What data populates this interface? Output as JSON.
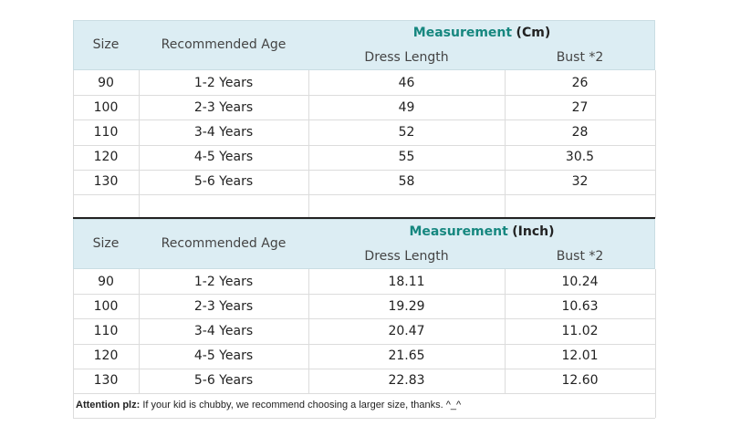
{
  "tables": [
    {
      "headers": {
        "size": "Size",
        "age": "Recommended Age",
        "measurement": "Measurement",
        "unit": "(Cm)",
        "dress_length": "Dress Length",
        "bust": "Bust *2"
      },
      "rows": [
        [
          "90",
          "1-2 Years",
          "46",
          "26"
        ],
        [
          "100",
          "2-3 Years",
          "49",
          "27"
        ],
        [
          "110",
          "3-4 Years",
          "52",
          "28"
        ],
        [
          "120",
          "4-5 Years",
          "55",
          "30.5"
        ],
        [
          "130",
          "5-6 Years",
          "58",
          "32"
        ]
      ]
    },
    {
      "headers": {
        "size": "Size",
        "age": "Recommended Age",
        "measurement": "Measurement",
        "unit": "(Inch)",
        "dress_length": "Dress Length",
        "bust": "Bust *2"
      },
      "rows": [
        [
          "90",
          "1-2 Years",
          "18.11",
          "10.24"
        ],
        [
          "100",
          "2-3 Years",
          "19.29",
          "10.63"
        ],
        [
          "110",
          "3-4 Years",
          "20.47",
          "11.02"
        ],
        [
          "120",
          "4-5 Years",
          "21.65",
          "12.01"
        ],
        [
          "130",
          "5-6 Years",
          "22.83",
          "12.60"
        ]
      ]
    }
  ],
  "note": {
    "label": "Attention plz:",
    "text": "If your kid is chubby, we recommend choosing a larger size, thanks. ^_^"
  }
}
